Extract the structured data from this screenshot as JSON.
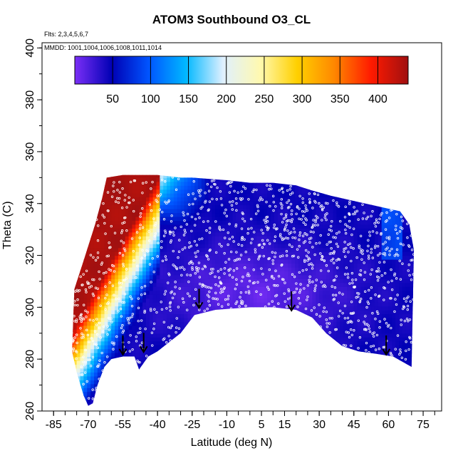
{
  "chart_data": {
    "type": "heatmap",
    "title": "ATOM3 Southbound O3_CL",
    "flights_note": "Flts: 2,3,4,5,6,7",
    "dates_note": "MMDD: 1001,1004,1006,1008,1011,1014",
    "xlabel": "Latitude (deg N)",
    "ylabel": "Theta (C)",
    "xlim": [
      -90,
      83
    ],
    "ylim": [
      260,
      402
    ],
    "x_ticks": [
      -85,
      -70,
      -55,
      -40,
      -25,
      -10,
      5,
      15,
      30,
      45,
      60,
      75
    ],
    "y_ticks": [
      260,
      280,
      300,
      320,
      340,
      360,
      380,
      400
    ],
    "colorbar": {
      "min": 0,
      "max": 440,
      "ticks": [
        50,
        100,
        150,
        200,
        250,
        300,
        350,
        400
      ],
      "colors": [
        "#7b2ff7",
        "#0000b4",
        "#0055ff",
        "#00b8ff",
        "#dff0ff",
        "#fff9b0",
        "#ffd000",
        "#ff8800",
        "#ff1a00",
        "#a01010"
      ]
    },
    "data_top_boundary": [
      [
        -76,
        307
      ],
      [
        -72,
        318
      ],
      [
        -67,
        332
      ],
      [
        -64,
        342
      ],
      [
        -62,
        350
      ],
      [
        -55,
        351
      ],
      [
        -50,
        351
      ],
      [
        -45,
        351
      ],
      [
        -40,
        351
      ],
      [
        -30,
        350
      ],
      [
        -25,
        350
      ],
      [
        -10,
        349
      ],
      [
        0,
        348
      ],
      [
        10,
        348
      ],
      [
        20,
        347
      ],
      [
        27,
        345
      ],
      [
        35,
        343
      ],
      [
        45,
        341
      ],
      [
        55,
        339
      ],
      [
        65,
        337
      ],
      [
        69,
        332
      ],
      [
        71,
        322
      ]
    ],
    "data_bottom_boundary": [
      [
        -77,
        283
      ],
      [
        -75,
        275
      ],
      [
        -72,
        266
      ],
      [
        -70,
        262
      ],
      [
        -68,
        263
      ],
      [
        -66,
        270
      ],
      [
        -63,
        277
      ],
      [
        -60,
        280
      ],
      [
        -55,
        281
      ],
      [
        -50,
        281
      ],
      [
        -48,
        276
      ],
      [
        -44,
        281
      ],
      [
        -40,
        283
      ],
      [
        -30,
        290
      ],
      [
        -24,
        297
      ],
      [
        -15,
        299
      ],
      [
        0,
        300
      ],
      [
        10,
        300
      ],
      [
        20,
        299
      ],
      [
        27,
        296
      ],
      [
        33,
        290
      ],
      [
        40,
        285
      ],
      [
        47,
        283
      ],
      [
        55,
        282
      ],
      [
        62,
        281
      ],
      [
        70,
        277
      ]
    ],
    "markers": [
      {
        "x": -55,
        "y": 282
      },
      {
        "x": -46,
        "y": 283
      },
      {
        "x": -22,
        "y": 300
      },
      {
        "x": 18,
        "y": 299
      },
      {
        "x": 59,
        "y": 282
      }
    ]
  }
}
